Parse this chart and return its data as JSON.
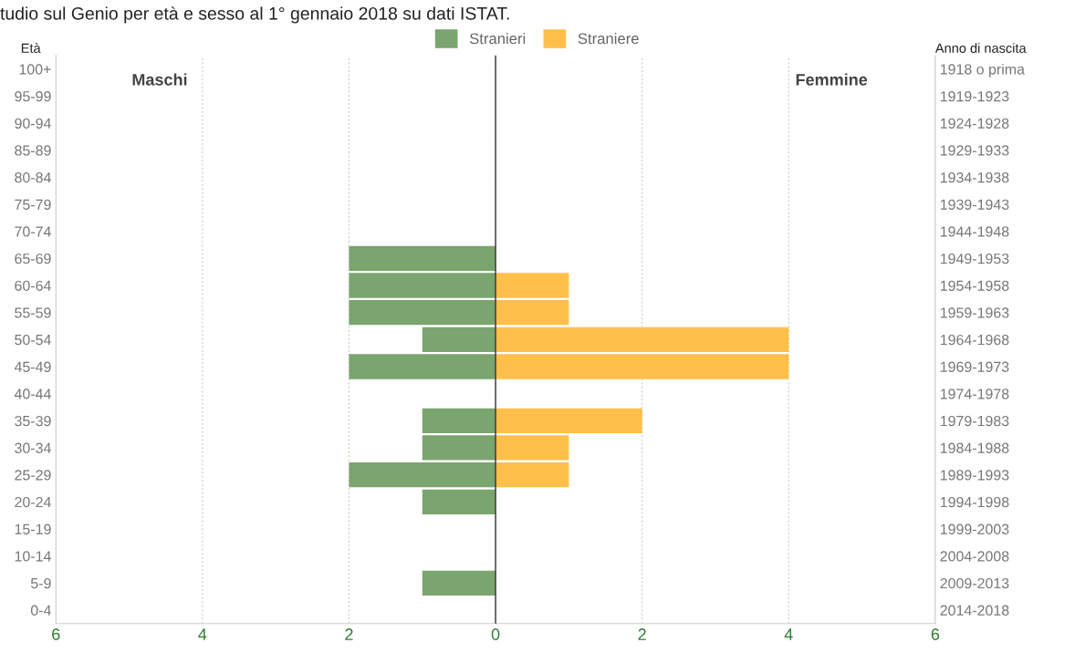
{
  "chart_data": {
    "type": "bar",
    "orientation": "horizontal",
    "title": "tudio sul Genio per età e sesso al 1° gennaio 2018 su dati ISTAT.",
    "ylabel": "Età",
    "y2label": "Anno di nascita",
    "categories": [
      "100+",
      "95-99",
      "90-94",
      "85-89",
      "80-84",
      "75-79",
      "70-74",
      "65-69",
      "60-64",
      "55-59",
      "50-54",
      "45-49",
      "40-44",
      "35-39",
      "30-34",
      "25-29",
      "20-24",
      "15-19",
      "10-14",
      "5-9",
      "0-4"
    ],
    "y2_categories": [
      "1918 o prima",
      "1919-1923",
      "1924-1928",
      "1929-1933",
      "1934-1938",
      "1939-1943",
      "1944-1948",
      "1949-1953",
      "1954-1958",
      "1959-1963",
      "1964-1968",
      "1969-1973",
      "1974-1978",
      "1979-1983",
      "1984-1988",
      "1989-1993",
      "1994-1998",
      "1999-2003",
      "2004-2008",
      "2009-2013",
      "2014-2018"
    ],
    "series": [
      {
        "name": "Stranieri",
        "color": "#7aa56e",
        "values": [
          0,
          0,
          0,
          0,
          0,
          0,
          0,
          -2,
          -2,
          -2,
          -1,
          -2,
          0,
          -1,
          -1,
          -2,
          -1,
          0,
          0,
          -1,
          0
        ]
      },
      {
        "name": "Straniere",
        "color": "#ffbf4a",
        "values": [
          0,
          0,
          0,
          0,
          0,
          0,
          0,
          0,
          1,
          1,
          4,
          4,
          0,
          2,
          1,
          1,
          0,
          0,
          0,
          0,
          0
        ]
      }
    ],
    "xlim": [
      -6,
      6
    ],
    "xticks": [
      {
        "value": -6,
        "label": "6"
      },
      {
        "value": -4,
        "label": "4"
      },
      {
        "value": -2,
        "label": "2"
      },
      0,
      2,
      4,
      6
    ],
    "grid": "x",
    "legend": "top",
    "ref_lines": [
      {
        "axis": "x",
        "value": 0,
        "color": "#333333"
      }
    ],
    "annotations": [
      "Maschi",
      "Femmine"
    ]
  }
}
